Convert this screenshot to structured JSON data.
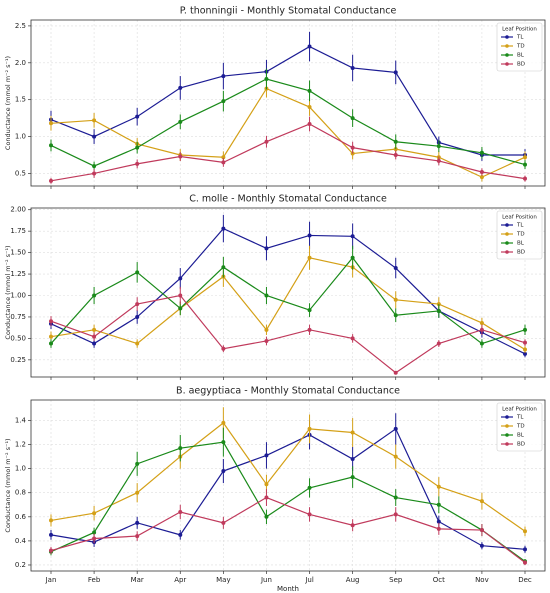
{
  "chart_data": [
    {
      "type": "line",
      "title": "P. thonningii - Monthly Stomatal Conductance",
      "ylabel": "Conductance (mmol m⁻² s⁻¹)",
      "ylim": [
        0.33,
        2.58
      ],
      "yticks": [
        0.5,
        {
          "value": 1,
          "label": "1.0"
        },
        1.5,
        {
          "value": 2,
          "label": "2.0"
        },
        2.5
      ],
      "grid": true,
      "legend_title": "Leaf Position",
      "legend": "upper right",
      "series": [
        {
          "name": "TL",
          "color": "#1c1c94",
          "values": [
            1.23,
            1.0,
            1.27,
            1.66,
            1.82,
            1.88,
            2.22,
            1.93,
            1.87,
            0.92,
            0.75,
            0.75
          ],
          "errors": [
            0.12,
            0.1,
            0.12,
            0.16,
            0.18,
            0.16,
            0.2,
            0.18,
            0.16,
            0.08,
            0.08,
            0.08
          ]
        },
        {
          "name": "TD",
          "color": "#d4a017",
          "values": [
            1.18,
            1.22,
            0.9,
            0.75,
            0.72,
            1.65,
            1.4,
            0.77,
            0.83,
            0.72,
            0.45,
            0.72
          ],
          "errors": [
            0.1,
            0.1,
            0.08,
            0.08,
            0.08,
            0.12,
            0.12,
            0.08,
            0.08,
            0.08,
            0.06,
            0.08
          ]
        },
        {
          "name": "BL",
          "color": "#1a8a1a",
          "values": [
            0.88,
            0.6,
            0.85,
            1.2,
            1.48,
            1.78,
            1.62,
            1.25,
            0.93,
            0.87,
            0.78,
            0.62
          ],
          "errors": [
            0.08,
            0.06,
            0.08,
            0.1,
            0.14,
            0.14,
            0.14,
            0.12,
            0.1,
            0.08,
            0.08,
            0.06
          ]
        },
        {
          "name": "BD",
          "color": "#c03a5c",
          "values": [
            0.4,
            0.5,
            0.63,
            0.73,
            0.65,
            0.93,
            1.17,
            0.85,
            0.75,
            0.67,
            0.52,
            0.43
          ],
          "errors": [
            0.04,
            0.06,
            0.06,
            0.06,
            0.06,
            0.08,
            0.1,
            0.08,
            0.06,
            0.06,
            0.05,
            0.04
          ]
        }
      ]
    },
    {
      "type": "line",
      "title": "C. molle - Monthly Stomatal Conductance",
      "ylabel": "Conductance (mmol m⁻² s⁻¹)",
      "ylim": [
        0.05,
        2.02
      ],
      "yticks": [
        0.25,
        {
          "value": 0.5,
          "label": "0.50"
        },
        0.75,
        {
          "value": 1,
          "label": "1.00"
        },
        1.25,
        {
          "value": 1.5,
          "label": "1.50"
        },
        1.75,
        {
          "value": 2,
          "label": "2.00"
        }
      ],
      "grid": true,
      "legend_title": "Leaf Position",
      "legend": "upper right",
      "series": [
        {
          "name": "TL",
          "color": "#1c1c94",
          "values": [
            0.67,
            0.44,
            0.75,
            1.2,
            1.78,
            1.55,
            1.7,
            1.69,
            1.32,
            0.82,
            0.57,
            0.32
          ],
          "errors": [
            0.06,
            0.05,
            0.08,
            0.12,
            0.16,
            0.14,
            0.16,
            0.15,
            0.12,
            0.08,
            0.06,
            0.04
          ]
        },
        {
          "name": "TD",
          "color": "#d4a017",
          "values": [
            0.52,
            0.6,
            0.44,
            0.85,
            1.22,
            0.6,
            1.44,
            1.33,
            0.95,
            0.9,
            0.68,
            0.37
          ],
          "errors": [
            0.06,
            0.06,
            0.05,
            0.08,
            0.12,
            0.06,
            0.14,
            0.12,
            0.1,
            0.08,
            0.06,
            0.04
          ]
        },
        {
          "name": "BL",
          "color": "#1a8a1a",
          "values": [
            0.44,
            1.0,
            1.27,
            0.85,
            1.33,
            1.0,
            0.83,
            1.44,
            0.77,
            0.82,
            0.44,
            0.6
          ],
          "errors": [
            0.05,
            0.1,
            0.12,
            0.08,
            0.12,
            0.1,
            0.08,
            0.14,
            0.08,
            0.08,
            0.05,
            0.06
          ]
        },
        {
          "name": "BD",
          "color": "#c03a5c",
          "values": [
            0.7,
            0.52,
            0.9,
            1.0,
            0.38,
            0.47,
            0.6,
            0.5,
            0.1,
            0.44,
            0.6,
            0.45
          ],
          "errors": [
            0.06,
            0.05,
            0.08,
            0.1,
            0.04,
            0.05,
            0.06,
            0.05,
            0.02,
            0.04,
            0.06,
            0.04
          ]
        }
      ]
    },
    {
      "type": "line",
      "title": "B. aegyptiaca - Monthly Stomatal Conductance",
      "ylabel": "Conductance (mmol m⁻² s⁻¹)",
      "xlabel": "Month",
      "categories": [
        "Jan",
        "Feb",
        "Mar",
        "Apr",
        "May",
        "Jun",
        "Jul",
        "Aug",
        "Sep",
        "Oct",
        "Nov",
        "Dec"
      ],
      "ylim": [
        0.15,
        1.57
      ],
      "yticks": [
        0.2,
        0.4,
        0.6,
        0.8,
        {
          "value": 1,
          "label": "1.0"
        },
        1.2,
        1.4
      ],
      "grid": true,
      "legend_title": "Leaf Position",
      "legend": "upper right",
      "series": [
        {
          "name": "TL",
          "color": "#1c1c94",
          "values": [
            0.45,
            0.39,
            0.55,
            0.45,
            0.98,
            1.11,
            1.28,
            1.08,
            1.33,
            0.56,
            0.36,
            0.33
          ],
          "errors": [
            0.04,
            0.04,
            0.05,
            0.04,
            0.1,
            0.11,
            0.12,
            0.1,
            0.13,
            0.05,
            0.03,
            0.03
          ]
        },
        {
          "name": "TD",
          "color": "#d4a017",
          "values": [
            0.57,
            0.63,
            0.8,
            1.1,
            1.38,
            0.87,
            1.33,
            1.3,
            1.1,
            0.85,
            0.73,
            0.48
          ],
          "errors": [
            0.05,
            0.06,
            0.08,
            0.1,
            0.13,
            0.08,
            0.12,
            0.12,
            0.1,
            0.08,
            0.07,
            0.04
          ]
        },
        {
          "name": "BL",
          "color": "#1a8a1a",
          "values": [
            0.31,
            0.47,
            1.04,
            1.17,
            1.22,
            0.6,
            0.84,
            0.93,
            0.76,
            0.7,
            0.49,
            0.23
          ],
          "errors": [
            0.03,
            0.04,
            0.1,
            0.11,
            0.12,
            0.06,
            0.08,
            0.09,
            0.07,
            0.07,
            0.05,
            0.02
          ]
        },
        {
          "name": "BD",
          "color": "#c03a5c",
          "values": [
            0.32,
            0.42,
            0.44,
            0.64,
            0.55,
            0.76,
            0.62,
            0.53,
            0.62,
            0.5,
            0.49,
            0.22
          ],
          "errors": [
            0.03,
            0.04,
            0.04,
            0.06,
            0.05,
            0.07,
            0.06,
            0.05,
            0.06,
            0.05,
            0.05,
            0.02
          ]
        }
      ]
    }
  ]
}
